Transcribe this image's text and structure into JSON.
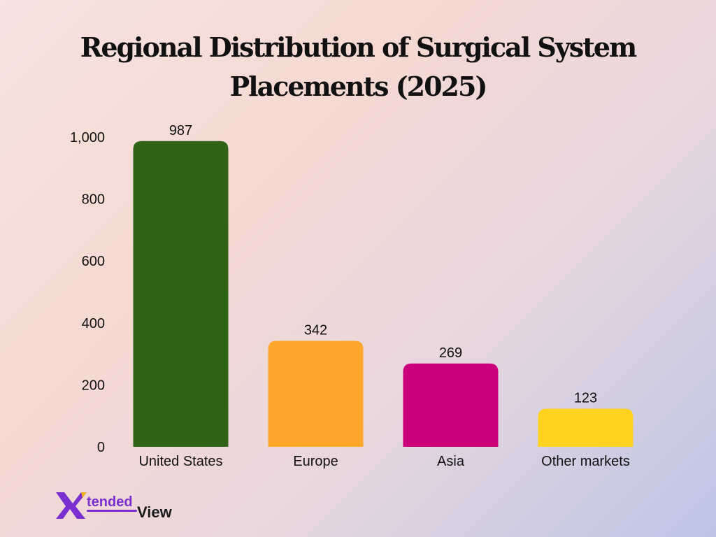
{
  "chart_data": {
    "type": "bar",
    "title_lines": [
      "Regional Distribution of Surgical System",
      "Placements (2025)"
    ],
    "categories": [
      "United States",
      "Europe",
      "Asia",
      "Other markets"
    ],
    "values": [
      987,
      342,
      269,
      123
    ],
    "data_labels": [
      "987",
      "342",
      "269",
      "123"
    ],
    "colors": [
      "#2f6417",
      "#ffa62b",
      "#cc007a",
      "#ffd21f"
    ],
    "ylim": [
      0,
      1000
    ],
    "yticks": [
      0,
      200,
      400,
      600,
      800,
      1000
    ],
    "ytick_labels": [
      "0",
      "200",
      "400",
      "600",
      "800",
      "1,000"
    ],
    "xlabel": "",
    "ylabel": "",
    "grid": false,
    "legend": "none"
  },
  "logo": {
    "mark": "X",
    "text_top": "tended",
    "text_bottom": "View",
    "mark_color": "#7b2fd0",
    "accent_color": "#f0b020"
  }
}
